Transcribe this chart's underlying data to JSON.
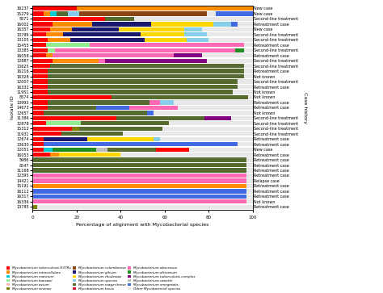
{
  "isolates": [
    "16237",
    "15279",
    "5571",
    "16002",
    "16357",
    "13799",
    "13105",
    "15455",
    "13385",
    "16058",
    "12887",
    "13625",
    "16216",
    "16328",
    "12007",
    "16332",
    "11951",
    "8574",
    "13993",
    "14673",
    "12657",
    "11386",
    "12878",
    "15312",
    "11931",
    "12674",
    "13630",
    "12051",
    "16053",
    "5986",
    "8547",
    "11168",
    "12395",
    "14421",
    "15191",
    "16112",
    "16317",
    "16336",
    "13785"
  ],
  "case_history": [
    "New case",
    "New case",
    "Second-line treatment",
    "Retreatment case",
    "New case",
    "Second-line treatment",
    "Second-line treatment",
    "Retreatment case",
    "Second-line treatment",
    "Retreatment case",
    "Second-line treatment",
    "Second-line treatment",
    "Retreatment case",
    "Not known",
    "Second-line treatment",
    "Retreatment case",
    "Not known",
    "Not known",
    "Retreatment case",
    "Retreatment case",
    "Not known",
    "Second-line treatment",
    "Second-line treatment",
    "Second-line treatment",
    "Second-line treatment",
    "Retreatment case",
    "Retreatment case",
    "New case",
    "Retreatment case",
    "Retreatment case",
    "Retreatment case",
    "Retreatment case",
    "Retreatment case",
    "Relapse case",
    "Retreatment case",
    "Retreatment case",
    "Retreatment case",
    "Not known",
    "Retreatment case"
  ],
  "species_colors": {
    "M. tuberculosis H37Rv": "#FF0000",
    "M. intracellulare": "#FF8C00",
    "M. marinum": "#00CED1",
    "M. kansasii": "#90EE90",
    "M. avium": "#FFB6C1",
    "M. sinense": "#808000",
    "M. colombiense": "#8B4513",
    "M. gilvum": "#191970",
    "M. rhodesiae": "#FFD700",
    "M. species": "#87CEEB",
    "M. mageritense": "#556B2F",
    "M. bovis": "#DC143C",
    "M. abscessus": "#FF69B4",
    "M. africanum": "#228B22",
    "M. tuberculosis complex": "#800080",
    "M. canettii": "#BEBEBE",
    "M. smegmatis": "#4169E1",
    "Other Mycobacterial species": "#E8E8E8"
  },
  "bars": [
    {
      "id": "16237",
      "segments": [
        [
          "M. tuberculosis H37Rv",
          20
        ],
        [
          "M. intracellulare",
          80
        ]
      ]
    },
    {
      "id": "15279",
      "segments": [
        [
          "M. tuberculosis H37Rv",
          5
        ],
        [
          "M. intracellulare",
          3
        ],
        [
          "M. marinum",
          3
        ],
        [
          "M. mageritense",
          5
        ],
        [
          "M. species",
          5
        ],
        [
          "M. colombiense",
          58
        ],
        [
          "Other Mycobacterial species",
          4
        ],
        [
          "M. smegmatis",
          17
        ]
      ]
    },
    {
      "id": "5571",
      "segments": [
        [
          "M. tuberculosis H37Rv",
          33
        ],
        [
          "M. mageritense",
          13
        ],
        [
          "Other Mycobacterial species",
          54
        ]
      ]
    },
    {
      "id": "16002",
      "segments": [
        [
          "M. tuberculosis H37Rv",
          9
        ],
        [
          "M. intracellulare",
          18
        ],
        [
          "M. gilvum",
          27
        ],
        [
          "M. rhodesiae",
          28
        ],
        [
          "M. species",
          8
        ],
        [
          "M. smegmatis",
          3
        ],
        [
          "Other Mycobacterial species",
          7
        ]
      ]
    },
    {
      "id": "16357",
      "segments": [
        [
          "M. tuberculosis H37Rv",
          8
        ],
        [
          "M. intracellulare",
          10
        ],
        [
          "M. gilvum",
          21
        ],
        [
          "M. rhodesiae",
          30
        ],
        [
          "M. species",
          8
        ],
        [
          "Other Mycobacterial species",
          23
        ]
      ]
    },
    {
      "id": "13799",
      "segments": [
        [
          "M. tuberculosis H37Rv",
          6
        ],
        [
          "M. intracellulare",
          8
        ],
        [
          "M. gilvum",
          35
        ],
        [
          "M. rhodesiae",
          20
        ],
        [
          "M. species",
          10
        ],
        [
          "Other Mycobacterial species",
          21
        ]
      ]
    },
    {
      "id": "13105",
      "segments": [
        [
          "M. tuberculosis H37Rv",
          7
        ],
        [
          "M. intracellulare",
          10
        ],
        [
          "M. gilvum",
          34
        ],
        [
          "M. rhodesiae",
          19
        ],
        [
          "M. species",
          10
        ],
        [
          "Other Mycobacterial species",
          20
        ]
      ]
    },
    {
      "id": "15455",
      "segments": [
        [
          "M. tuberculosis H37Rv",
          6
        ],
        [
          "M. kansasii",
          20
        ],
        [
          "M. abscessus",
          70
        ],
        [
          "Other Mycobacterial species",
          4
        ]
      ]
    },
    {
      "id": "13385",
      "segments": [
        [
          "M. tuberculosis H37Rv",
          7
        ],
        [
          "M. kansasii",
          3
        ],
        [
          "M. abscessus",
          82
        ],
        [
          "M. africanum",
          4
        ],
        [
          "Other Mycobacterial species",
          4
        ]
      ]
    },
    {
      "id": "16058",
      "segments": [
        [
          "M. tuberculosis H37Rv",
          6
        ],
        [
          "M. intracellulare",
          3
        ],
        [
          "M. abscessus",
          55
        ],
        [
          "M. tuberculosis complex",
          13
        ],
        [
          "Other Mycobacterial species",
          23
        ]
      ]
    },
    {
      "id": "12887",
      "segments": [
        [
          "M. tuberculosis H37Rv",
          9
        ],
        [
          "M. intracellulare",
          21
        ],
        [
          "M. abscessus",
          3
        ],
        [
          "M. tuberculosis complex",
          46
        ],
        [
          "Other Mycobacterial species",
          21
        ]
      ]
    },
    {
      "id": "13625",
      "segments": [
        [
          "M. tuberculosis H37Rv",
          8
        ],
        [
          "M. mageritense",
          88
        ],
        [
          "Other Mycobacterial species",
          4
        ]
      ]
    },
    {
      "id": "16216",
      "segments": [
        [
          "M. tuberculosis H37Rv",
          7
        ],
        [
          "M. mageritense",
          89
        ],
        [
          "Other Mycobacterial species",
          4
        ]
      ]
    },
    {
      "id": "16328",
      "segments": [
        [
          "M. tuberculosis H37Rv",
          7
        ],
        [
          "M. mageritense",
          89
        ],
        [
          "Other Mycobacterial species",
          4
        ]
      ]
    },
    {
      "id": "12007",
      "segments": [
        [
          "M. tuberculosis H37Rv",
          7
        ],
        [
          "M. mageritense",
          86
        ],
        [
          "Other Mycobacterial species",
          7
        ]
      ]
    },
    {
      "id": "16332",
      "segments": [
        [
          "M. tuberculosis H37Rv",
          7
        ],
        [
          "M. mageritense",
          86
        ],
        [
          "Other Mycobacterial species",
          7
        ]
      ]
    },
    {
      "id": "11951",
      "segments": [
        [
          "M. tuberculosis H37Rv",
          7
        ],
        [
          "M. mageritense",
          84
        ],
        [
          "Other Mycobacterial species",
          9
        ]
      ]
    },
    {
      "id": "8574",
      "segments": [
        [
          "M. tuberculosis H37Rv",
          36
        ],
        [
          "M. mageritense",
          62
        ],
        [
          "Other Mycobacterial species",
          2
        ]
      ]
    },
    {
      "id": "13993",
      "segments": [
        [
          "M. tuberculosis H37Rv",
          7
        ],
        [
          "M. mageritense",
          46
        ],
        [
          "M. abscessus",
          5
        ],
        [
          "M. species",
          6
        ],
        [
          "Other Mycobacterial species",
          36
        ]
      ]
    },
    {
      "id": "14673",
      "segments": [
        [
          "M. tuberculosis H37Rv",
          7
        ],
        [
          "M. mageritense",
          22
        ],
        [
          "M. smegmatis",
          15
        ],
        [
          "M. abscessus",
          22
        ],
        [
          "Other Mycobacterial species",
          34
        ]
      ]
    },
    {
      "id": "12657",
      "segments": [
        [
          "M. tuberculosis H37Rv",
          5
        ],
        [
          "M. mageritense",
          47
        ],
        [
          "M. smegmatis",
          3
        ],
        [
          "Other Mycobacterial species",
          45
        ]
      ]
    },
    {
      "id": "11386",
      "segments": [
        [
          "M. tuberculosis H37Rv",
          38
        ],
        [
          "M. mageritense",
          40
        ],
        [
          "M. tuberculosis complex",
          12
        ],
        [
          "Other Mycobacterial species",
          10
        ]
      ]
    },
    {
      "id": "12878",
      "segments": [
        [
          "M. tuberculosis H37Rv",
          6
        ],
        [
          "M. kansasii",
          16
        ],
        [
          "M. mageritense",
          40
        ],
        [
          "Other Mycobacterial species",
          38
        ]
      ]
    },
    {
      "id": "15312",
      "segments": [
        [
          "M. tuberculosis H37Rv",
          18
        ],
        [
          "M. sinense",
          3
        ],
        [
          "M. mageritense",
          38
        ],
        [
          "Other Mycobacterial species",
          41
        ]
      ]
    },
    {
      "id": "11931",
      "segments": [
        [
          "M. tuberculosis H37Rv",
          13
        ],
        [
          "M. mageritense",
          28
        ],
        [
          "Other Mycobacterial species",
          59
        ]
      ]
    },
    {
      "id": "12674",
      "segments": [
        [
          "M. tuberculosis H37Rv",
          5
        ],
        [
          "M. gilvum",
          20
        ],
        [
          "M. rhodesiae",
          30
        ],
        [
          "M. species",
          3
        ],
        [
          "Other Mycobacterial species",
          42
        ]
      ]
    },
    {
      "id": "13630",
      "segments": [
        [
          "M. tuberculosis H37Rv",
          5
        ],
        [
          "M. smegmatis",
          88
        ],
        [
          "Other Mycobacterial species",
          7
        ]
      ]
    },
    {
      "id": "12051",
      "segments": [
        [
          "M. tuberculosis H37Rv",
          5
        ],
        [
          "M. marinum",
          4
        ],
        [
          "M. africanum",
          20
        ],
        [
          "M. canettii",
          5
        ],
        [
          "M. mageritense",
          22
        ],
        [
          "M. tuberculosis H37Rv",
          15
        ],
        [
          "Other Mycobacterial species",
          29
        ]
      ]
    },
    {
      "id": "16053",
      "segments": [
        [
          "M. tuberculosis H37Rv",
          8
        ],
        [
          "M. intracellulare",
          4
        ],
        [
          "M. rhodesiae",
          28
        ],
        [
          "Other Mycobacterial species",
          60
        ]
      ]
    },
    {
      "id": "5986",
      "segments": [
        [
          "M. mageritense",
          97
        ],
        [
          "Other Mycobacterial species",
          3
        ]
      ]
    },
    {
      "id": "8547",
      "segments": [
        [
          "M. mageritense",
          97
        ],
        [
          "Other Mycobacterial species",
          3
        ]
      ]
    },
    {
      "id": "11168",
      "segments": [
        [
          "M. mageritense",
          97
        ],
        [
          "Other Mycobacterial species",
          3
        ]
      ]
    },
    {
      "id": "12395",
      "segments": [
        [
          "M. abscessus",
          97
        ],
        [
          "Other Mycobacterial species",
          3
        ]
      ]
    },
    {
      "id": "14421",
      "segments": [
        [
          "M. abscessus",
          97
        ],
        [
          "Other Mycobacterial species",
          3
        ]
      ]
    },
    {
      "id": "15191",
      "segments": [
        [
          "M. intracellulare",
          97
        ],
        [
          "Other Mycobacterial species",
          3
        ]
      ]
    },
    {
      "id": "16112",
      "segments": [
        [
          "M. smegmatis",
          97
        ],
        [
          "Other Mycobacterial species",
          3
        ]
      ]
    },
    {
      "id": "16317",
      "segments": [
        [
          "M. smegmatis",
          97
        ],
        [
          "Other Mycobacterial species",
          3
        ]
      ]
    },
    {
      "id": "16336",
      "segments": [
        [
          "M. abscessus",
          97
        ],
        [
          "Other Mycobacterial species",
          3
        ]
      ]
    },
    {
      "id": "13785",
      "segments": [
        [
          "M. sinense",
          2
        ],
        [
          "Other Mycobacterial species",
          98
        ]
      ]
    }
  ],
  "legend_labels": [
    "Mycobacterium tuberculosis H37Rv",
    "Mycobacterium intracellulare",
    "Mycobacterium marinum",
    "Mycobacterium kansasii",
    "Mycobacterium avium",
    "Mycobacterium sinense",
    "Mycobacterium colombiense",
    "Mycobacterium gilvum",
    "Mycobacterium rhodesiae",
    "Mycobacterium species",
    "Mycobacterium mageritense",
    "Mycobacterium bovis",
    "Mycobacterium abscessus",
    "Mycobacterium africanum",
    "Mycobacterium tuberculosis complex",
    "Mycobacterium canettii",
    "Mycobacterium smegmatis",
    "Other Mycobacterial species"
  ],
  "legend_keys": [
    "M. tuberculosis H37Rv",
    "M. intracellulare",
    "M. marinum",
    "M. kansasii",
    "M. avium",
    "M. sinense",
    "M. colombiense",
    "M. gilvum",
    "M. rhodesiae",
    "M. species",
    "M. mageritense",
    "M. bovis",
    "M. abscessus",
    "M. africanum",
    "M. tuberculosis complex",
    "M. canettii",
    "M. smegmatis",
    "Other Mycobacterial species"
  ]
}
